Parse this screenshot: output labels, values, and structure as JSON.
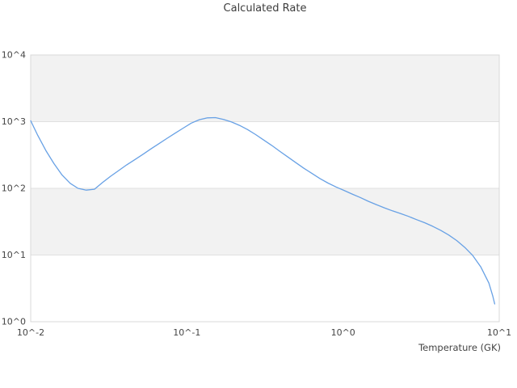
{
  "chart": {
    "title": "Calculated Rate",
    "xlabel": "Temperature (GK)"
  },
  "chart_data": {
    "type": "line",
    "title": "Calculated Rate",
    "xlabel": "Temperature (GK)",
    "ylabel": "",
    "x_scale": "log",
    "y_scale": "log",
    "xlim": [
      0.01,
      10
    ],
    "ylim": [
      1,
      10000
    ],
    "grid": "horizontal-decades-only",
    "legend": "none",
    "x_ticks": [
      {
        "value": 0.01,
        "label": "10^-2"
      },
      {
        "value": 0.1,
        "label": "10^-1"
      },
      {
        "value": 1,
        "label": "10^0"
      },
      {
        "value": 10,
        "label": "10^1"
      }
    ],
    "y_ticks": [
      {
        "value": 1,
        "label": "10^0"
      },
      {
        "value": 10,
        "label": "10^1"
      },
      {
        "value": 100,
        "label": "10^2"
      },
      {
        "value": 1000,
        "label": "10^3"
      },
      {
        "value": 10000,
        "label": "10^4"
      }
    ],
    "bands": {
      "fill": "#f2f2f2",
      "ranges": [
        [
          10,
          100
        ],
        [
          1000,
          10000
        ]
      ]
    },
    "colors": {
      "grid": "#e0e0e0",
      "frame": "#d9d9d9",
      "text": "#444444"
    },
    "series": [
      {
        "name": "calculated-rate",
        "color": "#68a1e5",
        "points": [
          [
            0.01,
            1030
          ],
          [
            0.0111,
            620
          ],
          [
            0.0125,
            370
          ],
          [
            0.0141,
            235
          ],
          [
            0.0159,
            158
          ],
          [
            0.0179,
            119
          ],
          [
            0.0201,
            100
          ],
          [
            0.0227,
            94
          ],
          [
            0.0256,
            97
          ],
          [
            0.0288,
            122
          ],
          [
            0.0325,
            152
          ],
          [
            0.0366,
            185
          ],
          [
            0.0412,
            225
          ],
          [
            0.0465,
            270
          ],
          [
            0.0524,
            325
          ],
          [
            0.059,
            392
          ],
          [
            0.0664,
            470
          ],
          [
            0.0748,
            565
          ],
          [
            0.0842,
            672
          ],
          [
            0.0948,
            800
          ],
          [
            0.1067,
            950
          ],
          [
            0.1201,
            1070
          ],
          [
            0.1353,
            1140
          ],
          [
            0.1523,
            1150
          ],
          [
            0.1715,
            1080
          ],
          [
            0.1931,
            990
          ],
          [
            0.2174,
            880
          ],
          [
            0.2448,
            760
          ],
          [
            0.2756,
            640
          ],
          [
            0.3103,
            530
          ],
          [
            0.3494,
            440
          ],
          [
            0.3934,
            360
          ],
          [
            0.4429,
            295
          ],
          [
            0.4987,
            243
          ],
          [
            0.5615,
            200
          ],
          [
            0.6322,
            167
          ],
          [
            0.7118,
            140
          ],
          [
            0.8014,
            120
          ],
          [
            0.9023,
            105
          ],
          [
            1.0159,
            93
          ],
          [
            1.1439,
            82
          ],
          [
            1.2879,
            73
          ],
          [
            1.4501,
            64
          ],
          [
            1.6327,
            57
          ],
          [
            1.8382,
            51
          ],
          [
            2.0697,
            46
          ],
          [
            2.3303,
            42
          ],
          [
            2.6237,
            38
          ],
          [
            2.954,
            34
          ],
          [
            3.326,
            30.5
          ],
          [
            3.7448,
            27
          ],
          [
            4.2163,
            23.5
          ],
          [
            4.7472,
            20
          ],
          [
            5.3449,
            16.5
          ],
          [
            6.0179,
            13
          ],
          [
            6.7757,
            9.8
          ],
          [
            7.6288,
            6.6
          ],
          [
            8.5894,
            3.8
          ],
          [
            9.1,
            2.4
          ],
          [
            9.35,
            1.85
          ]
        ]
      }
    ]
  }
}
